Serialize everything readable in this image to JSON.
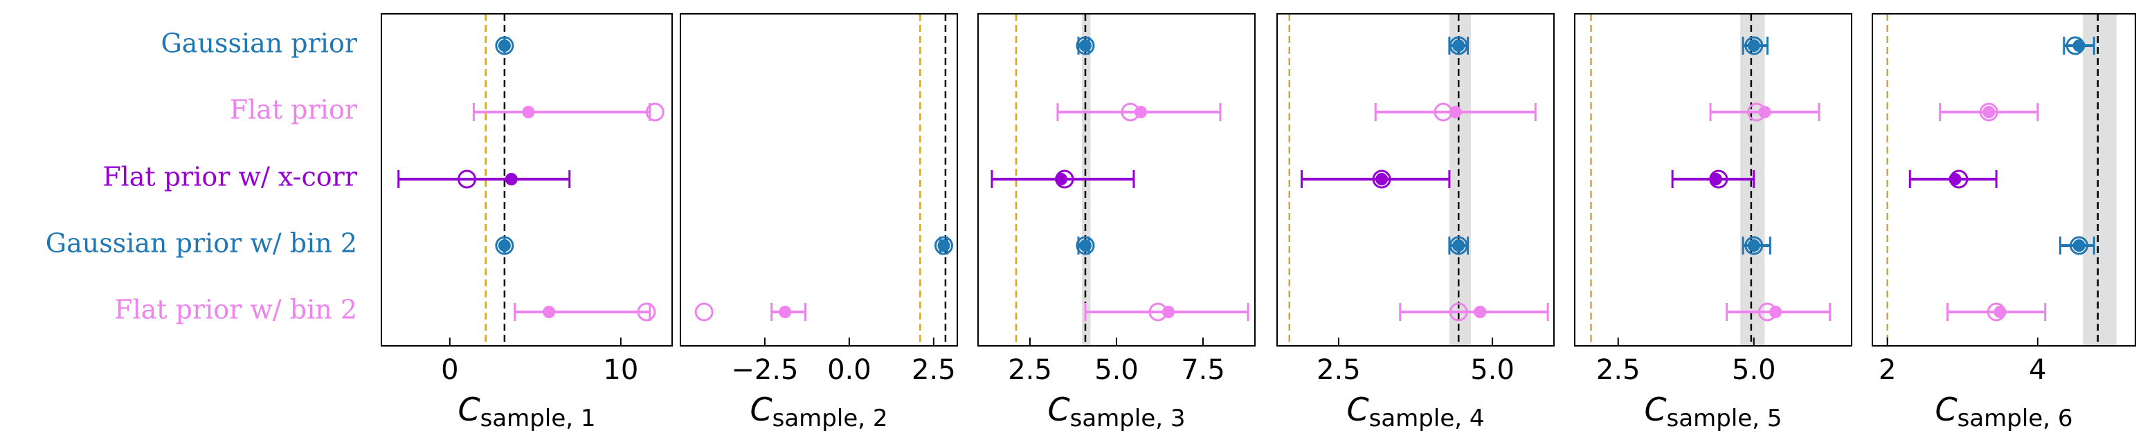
{
  "chart_data": {
    "type": "errorbar",
    "rows": [
      {
        "label": "Gaussian prior",
        "color": "#1f77b4"
      },
      {
        "label": "Flat prior",
        "color": "#ee82ee"
      },
      {
        "label": "Flat prior w/ x-corr",
        "color": "#9400d3"
      },
      {
        "label": "Gaussian prior w/ bin 2",
        "color": "#1f77b4"
      },
      {
        "label": "Flat prior w/ bin 2",
        "color": "#ee82ee"
      }
    ],
    "reference_color": "#000000",
    "alt_reference_color": "#daa520",
    "band_color": "#e0e0e0",
    "panels": [
      {
        "xlabel_main": "C",
        "xlabel_sub": "sample, 1",
        "xlim": [
          -4,
          13
        ],
        "ticks": [
          0,
          10
        ],
        "tick_labels": [
          "0",
          "10"
        ],
        "reference": 3.2,
        "alt_reference": 2.1,
        "band": null,
        "entries": [
          {
            "mean": 3.2,
            "lo": 3.2,
            "hi": 3.2,
            "open": 3.2
          },
          {
            "mean": 4.6,
            "lo": 1.4,
            "hi": 11.7,
            "open": 12.0
          },
          {
            "mean": 3.6,
            "lo": -3.0,
            "hi": 7.0,
            "open": 1.0
          },
          {
            "mean": 3.2,
            "lo": 3.2,
            "hi": 3.2,
            "open": 3.2
          },
          {
            "mean": 5.8,
            "lo": 3.8,
            "hi": 11.7,
            "open": 11.5
          }
        ]
      },
      {
        "xlabel_main": "C",
        "xlabel_sub": "sample, 2",
        "xlim": [
          -5.0,
          3.2
        ],
        "ticks": [
          -2.5,
          0.0,
          2.5
        ],
        "tick_labels": [
          "−2.5",
          "0.0",
          "2.5"
        ],
        "reference": 2.85,
        "alt_reference": 2.1,
        "band": null,
        "entries": [
          {
            "mean": null,
            "lo": null,
            "hi": null,
            "open": null
          },
          {
            "mean": null,
            "lo": null,
            "hi": null,
            "open": null
          },
          {
            "mean": null,
            "lo": null,
            "hi": null,
            "open": null
          },
          {
            "mean": 2.8,
            "lo": 2.7,
            "hi": 2.9,
            "open": 2.8
          },
          {
            "mean": -1.9,
            "lo": -2.3,
            "hi": -1.3,
            "open": -4.3
          }
        ]
      },
      {
        "xlabel_main": "C",
        "xlabel_sub": "sample, 3",
        "xlim": [
          1.0,
          9.0
        ],
        "ticks": [
          2.5,
          5.0,
          7.5
        ],
        "tick_labels": [
          "2.5",
          "5.0",
          "7.5"
        ],
        "reference": 4.1,
        "alt_reference": 2.1,
        "band": [
          4.0,
          4.25
        ],
        "entries": [
          {
            "mean": 4.1,
            "lo": 3.9,
            "hi": 4.2,
            "open": 4.1
          },
          {
            "mean": 5.7,
            "lo": 3.3,
            "hi": 8.0,
            "open": 5.4
          },
          {
            "mean": 3.4,
            "lo": 1.4,
            "hi": 5.5,
            "open": 3.5
          },
          {
            "mean": 4.1,
            "lo": 3.9,
            "hi": 4.2,
            "open": 4.1
          },
          {
            "mean": 6.5,
            "lo": 4.1,
            "hi": 8.8,
            "open": 6.2
          }
        ]
      },
      {
        "xlabel_main": "C",
        "xlabel_sub": "sample, 4",
        "xlim": [
          1.5,
          6.0
        ],
        "ticks": [
          2.5,
          5.0
        ],
        "tick_labels": [
          "2.5",
          "5.0"
        ],
        "reference": 4.45,
        "alt_reference": 1.7,
        "band": [
          4.3,
          4.65
        ],
        "entries": [
          {
            "mean": 4.45,
            "lo": 4.3,
            "hi": 4.6,
            "open": 4.45
          },
          {
            "mean": 4.4,
            "lo": 3.1,
            "hi": 5.7,
            "open": 4.2
          },
          {
            "mean": 3.2,
            "lo": 1.9,
            "hi": 4.3,
            "open": 3.2
          },
          {
            "mean": 4.45,
            "lo": 4.3,
            "hi": 4.6,
            "open": 4.45
          },
          {
            "mean": 4.8,
            "lo": 3.5,
            "hi": 5.9,
            "open": 4.45
          }
        ]
      },
      {
        "xlabel_main": "C",
        "xlabel_sub": "sample, 5",
        "xlim": [
          1.7,
          6.8
        ],
        "ticks": [
          2.5,
          5.0
        ],
        "tick_labels": [
          "2.5",
          "5.0"
        ],
        "reference": 4.95,
        "alt_reference": 2.0,
        "band": [
          4.75,
          5.2
        ],
        "entries": [
          {
            "mean": 5.0,
            "lo": 4.8,
            "hi": 5.25,
            "open": 5.0
          },
          {
            "mean": 5.2,
            "lo": 4.2,
            "hi": 6.2,
            "open": 5.05
          },
          {
            "mean": 4.3,
            "lo": 3.5,
            "hi": 5.0,
            "open": 4.35
          },
          {
            "mean": 5.0,
            "lo": 4.8,
            "hi": 5.3,
            "open": 5.0
          },
          {
            "mean": 5.4,
            "lo": 4.5,
            "hi": 6.4,
            "open": 5.25
          }
        ]
      },
      {
        "xlabel_main": "C",
        "xlabel_sub": "sample, 6",
        "xlim": [
          1.8,
          5.3
        ],
        "ticks": [
          2,
          4
        ],
        "tick_labels": [
          "2",
          "4"
        ],
        "reference": 4.8,
        "alt_reference": 2.0,
        "band": [
          4.6,
          5.05
        ],
        "entries": [
          {
            "mean": 4.55,
            "lo": 4.35,
            "hi": 4.75,
            "open": 4.5
          },
          {
            "mean": 3.35,
            "lo": 2.7,
            "hi": 4.0,
            "open": 3.35
          },
          {
            "mean": 2.9,
            "lo": 2.3,
            "hi": 3.45,
            "open": 2.95
          },
          {
            "mean": 4.55,
            "lo": 4.3,
            "hi": 4.75,
            "open": 4.55
          },
          {
            "mean": 3.5,
            "lo": 2.8,
            "hi": 4.1,
            "open": 3.45
          }
        ]
      }
    ]
  }
}
